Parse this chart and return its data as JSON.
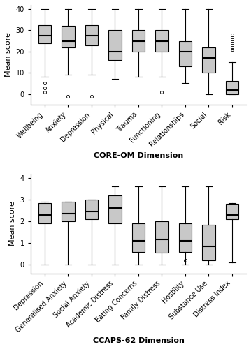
{
  "top_chart": {
    "title": "CORE-OM Dimension",
    "ylabel": "Mean score",
    "ylim": [
      -5,
      42
    ],
    "yticks": [
      0,
      10,
      20,
      30,
      40
    ],
    "categories": [
      "Wellbeing",
      "Anxiety",
      "Depression",
      "Physical",
      "Trauma",
      "Functioning",
      "Relationships",
      "Social",
      "Risk"
    ],
    "boxes": [
      {
        "med": 27.5,
        "q1": 24.0,
        "q3": 32.5,
        "whislo": 8.0,
        "whishi": 40.0,
        "fliers": [
          5.0,
          3.0,
          1.0
        ]
      },
      {
        "med": 25.0,
        "q1": 22.0,
        "q3": 32.0,
        "whislo": 9.0,
        "whishi": 40.0,
        "fliers": [
          -1.0
        ]
      },
      {
        "med": 27.5,
        "q1": 23.0,
        "q3": 32.5,
        "whislo": 9.0,
        "whishi": 40.0,
        "fliers": [
          -1.0
        ]
      },
      {
        "med": 20.0,
        "q1": 16.0,
        "q3": 30.0,
        "whislo": 7.0,
        "whishi": 40.0,
        "fliers": []
      },
      {
        "med": 25.0,
        "q1": 20.0,
        "q3": 30.0,
        "whislo": 8.0,
        "whishi": 40.0,
        "fliers": []
      },
      {
        "med": 25.0,
        "q1": 20.0,
        "q3": 30.0,
        "whislo": 8.0,
        "whishi": 40.0,
        "fliers": [
          1.0
        ]
      },
      {
        "med": 20.0,
        "q1": 13.0,
        "q3": 25.0,
        "whislo": 5.0,
        "whishi": 40.0,
        "fliers": []
      },
      {
        "med": 17.0,
        "q1": 10.0,
        "q3": 22.0,
        "whislo": 0.0,
        "whishi": 40.0,
        "fliers": []
      },
      {
        "med": 2.0,
        "q1": 0.0,
        "q3": 6.0,
        "whislo": 0.0,
        "whishi": 15.0,
        "fliers": [
          28.0,
          27.0,
          26.0,
          25.0,
          24.0,
          23.0,
          22.0,
          21.0
        ]
      }
    ]
  },
  "bottom_chart": {
    "title": "CCAPS-62 Dimension",
    "ylabel": "Mean score",
    "ylim": [
      -0.4,
      4.2
    ],
    "yticks": [
      0,
      1,
      2,
      3,
      4
    ],
    "categories": [
      "Depression",
      "Generalised Anxiety",
      "Social Anxiety",
      "Academic Distress",
      "Eating Concerns",
      "Family Distress",
      "Hostility",
      "Substance Use",
      "Distress Index"
    ],
    "boxes": [
      {
        "med": 2.3,
        "q1": 1.9,
        "q3": 2.85,
        "whislo": 0.0,
        "whishi": 2.9,
        "fliers": []
      },
      {
        "med": 2.35,
        "q1": 2.0,
        "q3": 2.9,
        "whislo": 0.0,
        "whishi": 2.9,
        "fliers": []
      },
      {
        "med": 2.45,
        "q1": 2.1,
        "q3": 3.0,
        "whislo": 0.0,
        "whishi": 3.0,
        "fliers": []
      },
      {
        "med": 2.6,
        "q1": 1.9,
        "q3": 3.2,
        "whislo": 0.0,
        "whishi": 3.6,
        "fliers": []
      },
      {
        "med": 1.1,
        "q1": 0.6,
        "q3": 1.9,
        "whislo": 0.0,
        "whishi": 3.6,
        "fliers": []
      },
      {
        "med": 1.15,
        "q1": 0.55,
        "q3": 2.0,
        "whislo": 0.0,
        "whishi": 3.6,
        "fliers": []
      },
      {
        "med": 1.1,
        "q1": 0.6,
        "q3": 1.9,
        "whislo": 0.0,
        "whishi": 3.6,
        "fliers": [
          0.2
        ]
      },
      {
        "med": 0.85,
        "q1": 0.2,
        "q3": 1.85,
        "whislo": 0.0,
        "whishi": 3.6,
        "fliers": []
      },
      {
        "med": 2.3,
        "q1": 2.1,
        "q3": 2.8,
        "whislo": 0.1,
        "whishi": 2.85,
        "fliers": []
      }
    ]
  },
  "box_color": "#c8c8c8",
  "median_color": "#000000",
  "whisker_color": "#000000",
  "flier_color": "#000000",
  "figure_bg": "#ffffff"
}
